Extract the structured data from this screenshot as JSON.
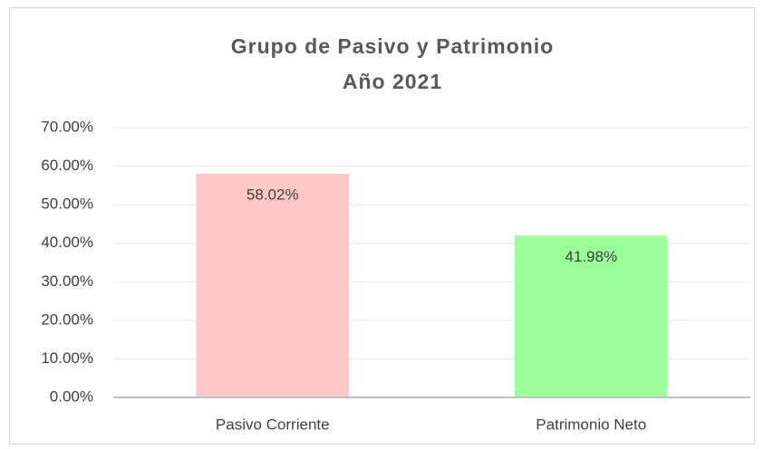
{
  "chart_data": {
    "type": "bar",
    "title": "Grupo de Pasivo y Patrimonio",
    "subtitle": "Año 2021",
    "categories": [
      "Pasivo Corriente",
      "Patrimonio Neto"
    ],
    "values": [
      58.02,
      41.98
    ],
    "value_labels": [
      "58.02%",
      "41.98%"
    ],
    "colors": [
      "#ffc7c7",
      "#99ff99"
    ],
    "ylim": [
      0,
      70
    ],
    "yticks": [
      {
        "value": 0,
        "label": "0.00%"
      },
      {
        "value": 10,
        "label": "10.00%"
      },
      {
        "value": 20,
        "label": "20.00%"
      },
      {
        "value": 30,
        "label": "30.00%"
      },
      {
        "value": 40,
        "label": "40.00%"
      },
      {
        "value": 50,
        "label": "50.00%"
      },
      {
        "value": 60,
        "label": "60.00%"
      },
      {
        "value": 70,
        "label": "70.00%"
      }
    ],
    "grid": true
  }
}
